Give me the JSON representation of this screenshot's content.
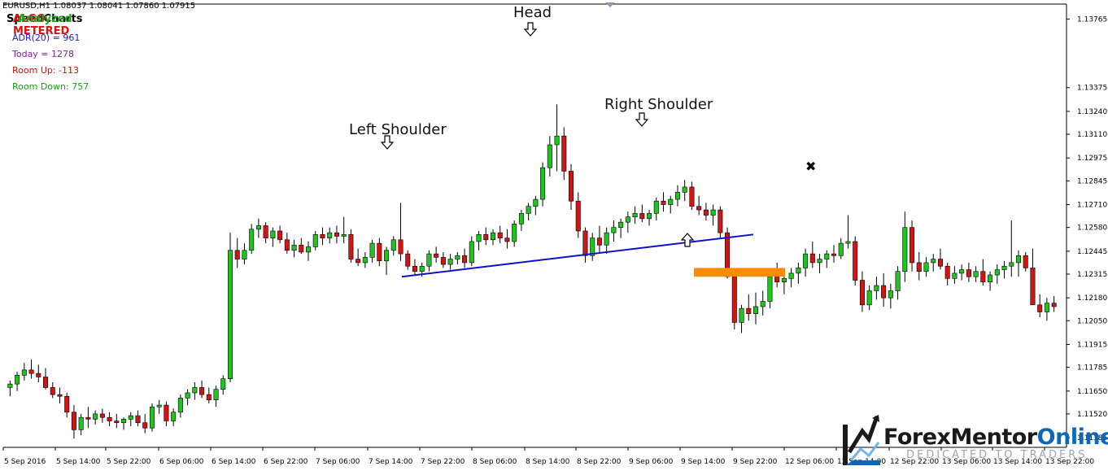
{
  "header": {
    "symbol_line": "EURUSD,H1  1.08037 1.08041 1.07860 1.07915",
    "overlap_labels": [
      {
        "text": "SpeedCharts",
        "color": "#000000"
      },
      {
        "text": "ALGO METERED",
        "color": "#e01010"
      },
      {
        "text": "Analyzed",
        "color": "#18a818"
      }
    ]
  },
  "indicator": {
    "adr": {
      "text": "ADR(20) = 961",
      "color": "#1a1ad0"
    },
    "today": {
      "text": "Today = 1278",
      "color": "#8a1aa8"
    },
    "room_up": {
      "text": "Room Up: -113",
      "color": "#d01010"
    },
    "room_down": {
      "text": "Room Down: 757",
      "color": "#18a018"
    }
  },
  "annotations": {
    "head": "Head",
    "left_shoulder": "Left Shoulder",
    "right_shoulder": "Right Shoulder"
  },
  "logo": {
    "name_a": "Forex",
    "name_b": "Mentor",
    "name_c": "Online",
    "tagline": "DEDICATED TO TRADERS"
  },
  "colors": {
    "bull": "#1fc51f",
    "bear": "#d21414",
    "wick": "#000000",
    "neckline": "#1010c8",
    "zone": "#ff8c00",
    "axis": "#000000"
  },
  "chart_data": {
    "type": "candlestick",
    "symbol": "EURUSD",
    "timeframe": "H1",
    "y_ticks": [
      "1.13765",
      "1.13375",
      "1.13240",
      "1.13110",
      "1.12975",
      "1.12845",
      "1.12710",
      "1.12580",
      "1.12445",
      "1.12315",
      "1.12180",
      "1.12050",
      "1.11915",
      "1.11785",
      "1.11650",
      "1.11520",
      "1.11385"
    ],
    "x_ticks": [
      "5 Sep 2016",
      "5 Sep 14:00",
      "5 Sep 22:00",
      "6 Sep 06:00",
      "6 Sep 14:00",
      "6 Sep 22:00",
      "7 Sep 06:00",
      "7 Sep 14:00",
      "7 Sep 22:00",
      "8 Sep 06:00",
      "8 Sep 14:00",
      "8 Sep 22:00",
      "9 Sep 06:00",
      "9 Sep 14:00",
      "9 Sep 22:00",
      "12 Sep 06:00",
      "12 Sep 14:00",
      "12 Sep 22:00",
      "13 Sep 06:00",
      "13 Sep 14:00",
      "13 Sep 22:00"
    ],
    "ylim": [
      1.1133,
      1.1385
    ],
    "candles_ohlc": [
      [
        1.1167,
        1.1171,
        1.1162,
        1.1169
      ],
      [
        1.1169,
        1.1176,
        1.1165,
        1.1174
      ],
      [
        1.1174,
        1.1181,
        1.1171,
        1.1177
      ],
      [
        1.1177,
        1.1183,
        1.1172,
        1.1175
      ],
      [
        1.1175,
        1.118,
        1.117,
        1.1173
      ],
      [
        1.1173,
        1.1178,
        1.1166,
        1.1167
      ],
      [
        1.1167,
        1.117,
        1.1161,
        1.1163
      ],
      [
        1.1163,
        1.1167,
        1.1158,
        1.1162
      ],
      [
        1.1162,
        1.1164,
        1.115,
        1.1153
      ],
      [
        1.1153,
        1.1157,
        1.1138,
        1.1143
      ],
      [
        1.1143,
        1.1152,
        1.114,
        1.115
      ],
      [
        1.115,
        1.1156,
        1.1144,
        1.1149
      ],
      [
        1.1149,
        1.1154,
        1.1146,
        1.1152
      ],
      [
        1.1152,
        1.1155,
        1.1147,
        1.115
      ],
      [
        1.115,
        1.1153,
        1.1145,
        1.1148
      ],
      [
        1.1148,
        1.1152,
        1.1144,
        1.1147
      ],
      [
        1.1147,
        1.115,
        1.1143,
        1.1149
      ],
      [
        1.1149,
        1.1153,
        1.1145,
        1.1151
      ],
      [
        1.1151,
        1.1154,
        1.1145,
        1.1147
      ],
      [
        1.1147,
        1.1152,
        1.1141,
        1.1144
      ],
      [
        1.1144,
        1.1158,
        1.1142,
        1.1156
      ],
      [
        1.1156,
        1.116,
        1.1152,
        1.1157
      ],
      [
        1.1157,
        1.1159,
        1.1145,
        1.1148
      ],
      [
        1.1148,
        1.1155,
        1.1145,
        1.1153
      ],
      [
        1.1153,
        1.1163,
        1.115,
        1.1161
      ],
      [
        1.1161,
        1.1166,
        1.1157,
        1.1164
      ],
      [
        1.1164,
        1.117,
        1.116,
        1.1167
      ],
      [
        1.1167,
        1.1171,
        1.1161,
        1.1163
      ],
      [
        1.1163,
        1.1167,
        1.1158,
        1.116
      ],
      [
        1.116,
        1.1168,
        1.1156,
        1.1166
      ],
      [
        1.1166,
        1.1174,
        1.1163,
        1.1172
      ],
      [
        1.1172,
        1.1255,
        1.117,
        1.1245
      ],
      [
        1.1245,
        1.1252,
        1.1235,
        1.124
      ],
      [
        1.124,
        1.1249,
        1.1237,
        1.1245
      ],
      [
        1.1245,
        1.126,
        1.1243,
        1.1257
      ],
      [
        1.1257,
        1.1263,
        1.1252,
        1.1259
      ],
      [
        1.1259,
        1.1261,
        1.1249,
        1.1252
      ],
      [
        1.1252,
        1.1258,
        1.1247,
        1.1256
      ],
      [
        1.1256,
        1.1259,
        1.1249,
        1.1251
      ],
      [
        1.1251,
        1.1255,
        1.1243,
        1.1245
      ],
      [
        1.1245,
        1.1251,
        1.1241,
        1.1248
      ],
      [
        1.1248,
        1.1252,
        1.1243,
        1.1244
      ],
      [
        1.1244,
        1.125,
        1.1239,
        1.1247
      ],
      [
        1.1247,
        1.1256,
        1.1245,
        1.1254
      ],
      [
        1.1254,
        1.1258,
        1.1248,
        1.1252
      ],
      [
        1.1252,
        1.1258,
        1.1249,
        1.1255
      ],
      [
        1.1255,
        1.1259,
        1.1249,
        1.1253
      ],
      [
        1.1253,
        1.1264,
        1.1249,
        1.1254
      ],
      [
        1.1254,
        1.1257,
        1.1238,
        1.124
      ],
      [
        1.124,
        1.1246,
        1.1236,
        1.1238
      ],
      [
        1.1238,
        1.1244,
        1.1235,
        1.1241
      ],
      [
        1.1241,
        1.1251,
        1.1238,
        1.1249
      ],
      [
        1.1249,
        1.1252,
        1.1236,
        1.1239
      ],
      [
        1.1239,
        1.1247,
        1.1231,
        1.1245
      ],
      [
        1.1245,
        1.1253,
        1.1242,
        1.1251
      ],
      [
        1.1251,
        1.1272,
        1.1239,
        1.1243
      ],
      [
        1.1243,
        1.1245,
        1.1234,
        1.1236
      ],
      [
        1.1236,
        1.124,
        1.1231,
        1.1233
      ],
      [
        1.1233,
        1.1238,
        1.123,
        1.1236
      ],
      [
        1.1236,
        1.1245,
        1.1233,
        1.1243
      ],
      [
        1.1243,
        1.1247,
        1.1238,
        1.1241
      ],
      [
        1.1241,
        1.1244,
        1.1235,
        1.1237
      ],
      [
        1.1237,
        1.1243,
        1.1234,
        1.124
      ],
      [
        1.124,
        1.1244,
        1.1237,
        1.1242
      ],
      [
        1.1242,
        1.1246,
        1.1235,
        1.1238
      ],
      [
        1.1238,
        1.1253,
        1.1236,
        1.125
      ],
      [
        1.125,
        1.1256,
        1.1245,
        1.1254
      ],
      [
        1.1254,
        1.1258,
        1.1248,
        1.1251
      ],
      [
        1.1251,
        1.1257,
        1.1248,
        1.1255
      ],
      [
        1.1255,
        1.1259,
        1.1249,
        1.1252
      ],
      [
        1.1252,
        1.1257,
        1.1246,
        1.125
      ],
      [
        1.125,
        1.1262,
        1.1247,
        1.126
      ],
      [
        1.126,
        1.1268,
        1.1256,
        1.1266
      ],
      [
        1.1266,
        1.1272,
        1.1262,
        1.127
      ],
      [
        1.127,
        1.1276,
        1.1265,
        1.1274
      ],
      [
        1.1274,
        1.1295,
        1.127,
        1.1292
      ],
      [
        1.1292,
        1.131,
        1.1287,
        1.1305
      ],
      [
        1.1305,
        1.1328,
        1.129,
        1.131
      ],
      [
        1.131,
        1.1315,
        1.1285,
        1.129
      ],
      [
        1.129,
        1.1294,
        1.1268,
        1.1273
      ],
      [
        1.1273,
        1.1278,
        1.1252,
        1.1256
      ],
      [
        1.1256,
        1.1258,
        1.1238,
        1.1242
      ],
      [
        1.1242,
        1.1255,
        1.1239,
        1.1252
      ],
      [
        1.1252,
        1.1259,
        1.1244,
        1.1248
      ],
      [
        1.1248,
        1.1258,
        1.1243,
        1.1255
      ],
      [
        1.1255,
        1.1262,
        1.125,
        1.1258
      ],
      [
        1.1258,
        1.1263,
        1.1252,
        1.1261
      ],
      [
        1.1261,
        1.1267,
        1.1255,
        1.1264
      ],
      [
        1.1264,
        1.127,
        1.126,
        1.1266
      ],
      [
        1.1266,
        1.1271,
        1.1261,
        1.1263
      ],
      [
        1.1263,
        1.1268,
        1.1259,
        1.1266
      ],
      [
        1.1266,
        1.1275,
        1.1262,
        1.1273
      ],
      [
        1.1273,
        1.1278,
        1.1267,
        1.1271
      ],
      [
        1.1271,
        1.1276,
        1.1266,
        1.1274
      ],
      [
        1.1274,
        1.1282,
        1.127,
        1.1278
      ],
      [
        1.1278,
        1.1285,
        1.1273,
        1.1281
      ],
      [
        1.1281,
        1.1284,
        1.1268,
        1.127
      ],
      [
        1.127,
        1.1276,
        1.1265,
        1.1268
      ],
      [
        1.1268,
        1.1272,
        1.1262,
        1.1265
      ],
      [
        1.1265,
        1.1271,
        1.1259,
        1.1268
      ],
      [
        1.1268,
        1.127,
        1.1252,
        1.1255
      ],
      [
        1.1255,
        1.1258,
        1.1229,
        1.123
      ],
      [
        1.123,
        1.1232,
        1.12,
        1.1204
      ],
      [
        1.1204,
        1.1214,
        1.1198,
        1.1212
      ],
      [
        1.1212,
        1.122,
        1.1205,
        1.1209
      ],
      [
        1.1209,
        1.1221,
        1.1203,
        1.1213
      ],
      [
        1.1213,
        1.1222,
        1.1208,
        1.1216
      ],
      [
        1.1216,
        1.1235,
        1.1212,
        1.123
      ],
      [
        1.123,
        1.1238,
        1.1224,
        1.1227
      ],
      [
        1.1227,
        1.1233,
        1.122,
        1.1229
      ],
      [
        1.1229,
        1.1235,
        1.1224,
        1.1232
      ],
      [
        1.1232,
        1.1238,
        1.1226,
        1.1235
      ],
      [
        1.1235,
        1.1246,
        1.123,
        1.1243
      ],
      [
        1.1243,
        1.125,
        1.1235,
        1.1238
      ],
      [
        1.1238,
        1.1243,
        1.1232,
        1.124
      ],
      [
        1.124,
        1.1245,
        1.1235,
        1.1243
      ],
      [
        1.1243,
        1.1248,
        1.1238,
        1.1242
      ],
      [
        1.1242,
        1.1252,
        1.124,
        1.1249
      ],
      [
        1.1249,
        1.1265,
        1.1246,
        1.125
      ],
      [
        1.125,
        1.1253,
        1.1225,
        1.1228
      ],
      [
        1.1228,
        1.1233,
        1.121,
        1.1214
      ],
      [
        1.1214,
        1.1225,
        1.1211,
        1.1222
      ],
      [
        1.1222,
        1.123,
        1.1217,
        1.1225
      ],
      [
        1.1225,
        1.1232,
        1.1213,
        1.1218
      ],
      [
        1.1218,
        1.1226,
        1.1212,
        1.1222
      ],
      [
        1.1222,
        1.1236,
        1.1217,
        1.1233
      ],
      [
        1.1233,
        1.1267,
        1.1227,
        1.1258
      ],
      [
        1.1258,
        1.1262,
        1.1233,
        1.1238
      ],
      [
        1.1238,
        1.1244,
        1.1228,
        1.1233
      ],
      [
        1.1233,
        1.1241,
        1.123,
        1.1238
      ],
      [
        1.1238,
        1.1243,
        1.1233,
        1.124
      ],
      [
        1.124,
        1.1246,
        1.1234,
        1.1236
      ],
      [
        1.1236,
        1.1238,
        1.1225,
        1.1229
      ],
      [
        1.1229,
        1.1236,
        1.1226,
        1.1232
      ],
      [
        1.1232,
        1.1237,
        1.1228,
        1.1234
      ],
      [
        1.1234,
        1.1238,
        1.1227,
        1.123
      ],
      [
        1.123,
        1.1236,
        1.1227,
        1.1233
      ],
      [
        1.1233,
        1.124,
        1.1225,
        1.1227
      ],
      [
        1.1227,
        1.1233,
        1.1222,
        1.1231
      ],
      [
        1.1231,
        1.1237,
        1.1226,
        1.1234
      ],
      [
        1.1234,
        1.1239,
        1.1229,
        1.1236
      ],
      [
        1.1236,
        1.1262,
        1.123,
        1.1238
      ],
      [
        1.1238,
        1.1245,
        1.123,
        1.1242
      ],
      [
        1.1242,
        1.1244,
        1.1233,
        1.1235
      ],
      [
        1.1235,
        1.1246,
        1.122,
        1.1214
      ],
      [
        1.1214,
        1.122,
        1.1207,
        1.121
      ],
      [
        1.121,
        1.1218,
        1.1205,
        1.1215
      ],
      [
        1.1215,
        1.1219,
        1.121,
        1.1213
      ]
    ],
    "neckline": {
      "from": [
        1.123
      ],
      "to": [
        1.1254
      ]
    },
    "breakout_zone": {
      "top": 1.1235,
      "bottom": 1.123
    }
  }
}
